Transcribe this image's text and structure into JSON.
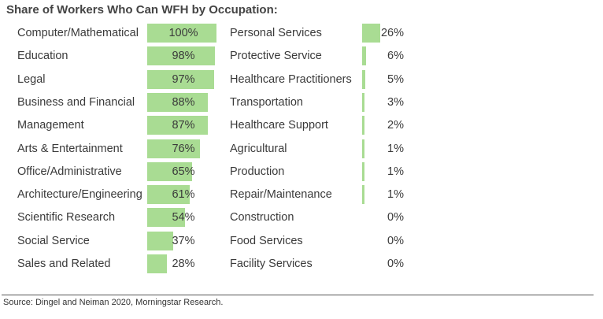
{
  "chart_data": {
    "type": "bar",
    "title": "Share of Workers Who Can WFH by Occupation:",
    "unit": "%",
    "xlim": [
      0,
      100
    ],
    "columns": [
      {
        "categories": [
          "Computer/Mathematical",
          "Education",
          "Legal",
          "Business and Financial",
          "Management",
          "Arts & Entertainment",
          "Office/Administrative",
          "Architecture/Engineering",
          "Scientific Research",
          "Social Service",
          "Sales and Related"
        ],
        "values": [
          100,
          98,
          97,
          88,
          87,
          76,
          65,
          61,
          54,
          37,
          28
        ]
      },
      {
        "categories": [
          "Personal Services",
          "Protective Service",
          "Healthcare Practitioners",
          "Transportation",
          "Healthcare Support",
          "Agricultural",
          "Production",
          "Repair/Maintenance",
          "Construction",
          "Food Services",
          "Facility Services"
        ],
        "values": [
          26,
          6,
          5,
          3,
          2,
          1,
          1,
          1,
          0,
          0,
          0
        ]
      }
    ],
    "bar_color": "#a9dc93",
    "source": "Source: Dingel and Neiman 2020, Morningstar Research."
  }
}
